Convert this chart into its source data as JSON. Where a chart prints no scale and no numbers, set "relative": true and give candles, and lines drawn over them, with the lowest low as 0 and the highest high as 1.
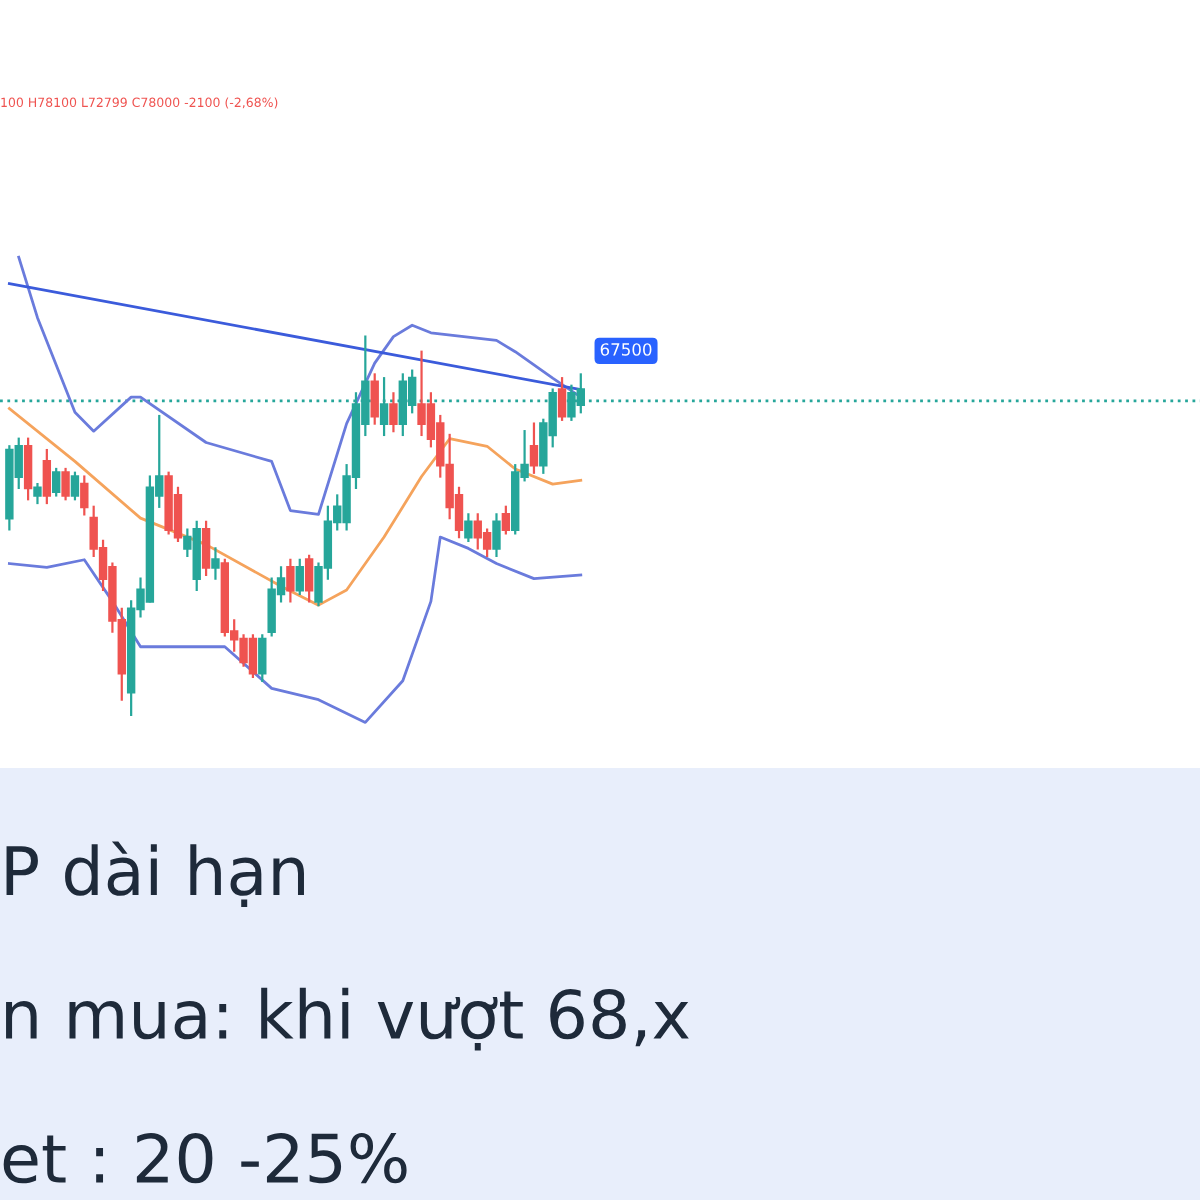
{
  "chart_data": {
    "type": "candlestick",
    "relative": true,
    "tick_labels": false,
    "categories": [
      null,
      null,
      null,
      null,
      null,
      null,
      null,
      null,
      null,
      null,
      null,
      null,
      null,
      null,
      null,
      null,
      null,
      null,
      null,
      null,
      null,
      null,
      null,
      null,
      null,
      null,
      null,
      null,
      null,
      null,
      null,
      null,
      null,
      null,
      null,
      null,
      null,
      null,
      null,
      null,
      null,
      null,
      null,
      null,
      null,
      null,
      null,
      null,
      null,
      null,
      null,
      null,
      null,
      null,
      null,
      null,
      null,
      null,
      null,
      null,
      null,
      null
    ],
    "ohlc": [
      [
        0.52,
        0.71,
        0.49,
        0.7
      ],
      [
        0.63,
        0.73,
        0.6,
        0.71
      ],
      [
        0.71,
        0.73,
        0.57,
        0.6
      ],
      [
        0.58,
        0.61,
        0.56,
        0.6
      ],
      [
        0.67,
        0.7,
        0.56,
        0.58
      ],
      [
        0.59,
        0.65,
        0.58,
        0.64
      ],
      [
        0.64,
        0.65,
        0.57,
        0.58
      ],
      [
        0.58,
        0.64,
        0.57,
        0.63
      ],
      [
        0.61,
        0.63,
        0.53,
        0.55
      ],
      [
        0.52,
        0.55,
        0.42,
        0.44
      ],
      [
        0.44,
        0.46,
        0.33,
        0.36
      ],
      [
        0.39,
        0.4,
        0.22,
        0.25
      ],
      [
        0.25,
        0.28,
        0.04,
        0.11
      ],
      [
        0.06,
        0.3,
        0.0,
        0.28
      ],
      [
        0.28,
        0.36,
        0.26,
        0.33
      ],
      [
        0.3,
        0.63,
        0.3,
        0.6
      ],
      [
        0.58,
        0.79,
        0.55,
        0.63
      ],
      [
        0.63,
        0.64,
        0.48,
        0.49
      ],
      [
        0.58,
        0.6,
        0.46,
        0.47
      ],
      [
        0.44,
        0.49,
        0.42,
        0.47
      ],
      [
        0.36,
        0.51,
        0.33,
        0.49
      ],
      [
        0.49,
        0.51,
        0.37,
        0.39
      ],
      [
        0.39,
        0.44,
        0.36,
        0.41
      ],
      [
        0.4,
        0.41,
        0.21,
        0.22
      ],
      [
        0.22,
        0.25,
        0.17,
        0.2
      ],
      [
        0.2,
        0.21,
        0.13,
        0.14
      ],
      [
        0.2,
        0.21,
        0.1,
        0.11
      ],
      [
        0.11,
        0.21,
        0.09,
        0.2
      ],
      [
        0.22,
        0.36,
        0.21,
        0.33
      ],
      [
        0.32,
        0.39,
        0.3,
        0.36
      ],
      [
        0.39,
        0.41,
        0.3,
        0.33
      ],
      [
        0.33,
        0.41,
        0.32,
        0.39
      ],
      [
        0.41,
        0.42,
        0.3,
        0.33
      ],
      [
        0.3,
        0.4,
        0.29,
        0.39
      ],
      [
        0.39,
        0.55,
        0.36,
        0.51
      ],
      [
        0.51,
        0.58,
        0.49,
        0.55
      ],
      [
        0.51,
        0.66,
        0.49,
        0.63
      ],
      [
        0.63,
        0.85,
        0.6,
        0.82
      ],
      [
        0.77,
        1.0,
        0.74,
        0.88
      ],
      [
        0.88,
        0.9,
        0.77,
        0.79
      ],
      [
        0.77,
        0.89,
        0.74,
        0.82
      ],
      [
        0.82,
        0.85,
        0.75,
        0.77
      ],
      [
        0.77,
        0.9,
        0.74,
        0.88
      ],
      [
        0.82,
        0.91,
        0.8,
        0.89
      ],
      [
        0.82,
        0.96,
        0.74,
        0.77
      ],
      [
        0.82,
        0.85,
        0.71,
        0.73
      ],
      [
        0.77,
        0.79,
        0.63,
        0.66
      ],
      [
        0.66,
        0.74,
        0.52,
        0.55
      ],
      [
        0.58,
        0.6,
        0.47,
        0.49
      ],
      [
        0.47,
        0.53,
        0.46,
        0.51
      ],
      [
        0.51,
        0.53,
        0.44,
        0.47
      ],
      [
        0.48,
        0.49,
        0.42,
        0.44
      ],
      [
        0.44,
        0.53,
        0.42,
        0.51
      ],
      [
        0.53,
        0.55,
        0.48,
        0.49
      ],
      [
        0.49,
        0.66,
        0.48,
        0.64
      ],
      [
        0.63,
        0.75,
        0.62,
        0.66
      ],
      [
        0.71,
        0.77,
        0.64,
        0.66
      ],
      [
        0.66,
        0.78,
        0.64,
        0.77
      ],
      [
        0.74,
        0.86,
        0.71,
        0.85
      ],
      [
        0.86,
        0.89,
        0.78,
        0.79
      ],
      [
        0.79,
        0.87,
        0.78,
        0.85
      ],
      [
        0.82,
        0.9,
        0.8,
        0.86
      ]
    ],
    "series": [
      {
        "type": "line",
        "color": "#6a7bdc",
        "values": [
          null,
          1.21,
          null,
          1.05,
          null,
          null,
          null,
          0.8,
          null,
          0.75,
          null,
          null,
          null,
          0.84,
          0.84,
          null,
          null,
          null,
          null,
          null,
          null,
          0.72,
          null,
          null,
          null,
          null,
          null,
          null,
          0.67,
          null,
          0.54,
          null,
          null,
          0.53,
          null,
          null,
          0.77,
          null,
          null,
          0.93,
          null,
          1.0,
          null,
          1.03,
          null,
          1.01,
          null,
          null,
          null,
          null,
          null,
          null,
          0.99,
          null,
          0.96,
          null,
          null,
          null,
          0.89,
          null,
          null,
          0.84
        ]
      },
      {
        "type": "line",
        "color": "#6a7bdc",
        "values": [
          0.4,
          null,
          null,
          null,
          0.39,
          null,
          null,
          null,
          0.41,
          null,
          null,
          0.3,
          null,
          null,
          0.18,
          null,
          null,
          null,
          null,
          null,
          null,
          null,
          null,
          0.18,
          null,
          null,
          null,
          null,
          0.07,
          null,
          null,
          null,
          null,
          0.04,
          null,
          null,
          null,
          null,
          -0.02,
          null,
          null,
          null,
          0.09,
          null,
          null,
          0.3,
          0.47,
          null,
          null,
          0.44,
          null,
          null,
          0.4,
          null,
          null,
          null,
          0.36,
          null,
          null,
          null,
          null,
          0.37
        ]
      },
      {
        "type": "line",
        "color": "#f5a35c",
        "values": [
          0.81,
          null,
          null,
          null,
          null,
          null,
          null,
          0.67,
          null,
          null,
          null,
          null,
          null,
          null,
          0.52,
          null,
          null,
          null,
          null,
          null,
          null,
          0.45,
          null,
          null,
          null,
          null,
          null,
          null,
          null,
          0.34,
          null,
          null,
          null,
          0.29,
          null,
          null,
          0.33,
          null,
          null,
          null,
          0.47,
          null,
          null,
          null,
          0.63,
          null,
          null,
          0.73,
          null,
          null,
          null,
          0.71,
          null,
          null,
          0.65,
          null,
          null,
          null,
          0.61,
          null,
          null,
          0.62
        ]
      },
      {
        "type": "line",
        "color": "#3b5bdb",
        "values": [
          1.14,
          null,
          null,
          null,
          null,
          null,
          null,
          null,
          null,
          null,
          null,
          null,
          null,
          null,
          null,
          null,
          null,
          null,
          null,
          null,
          null,
          null,
          null,
          null,
          null,
          null,
          null,
          null,
          null,
          null,
          null,
          null,
          null,
          null,
          null,
          null,
          null,
          null,
          null,
          null,
          null,
          null,
          null,
          null,
          null,
          null,
          null,
          null,
          null,
          null,
          null,
          null,
          null,
          null,
          null,
          null,
          null,
          null,
          null,
          null,
          null,
          0.86
        ]
      }
    ],
    "ref_lines": [
      {
        "axis": "y",
        "value": 0.83,
        "color": "#26a69a",
        "line_style": "dotted"
      }
    ],
    "annotations": [
      "100 H78100 L72799 C78000 -2100 (-2,68%)",
      "67500",
      "P dài hạn",
      "n mua: khi vượt 68,x",
      "et : 20 -25%"
    ]
  }
}
